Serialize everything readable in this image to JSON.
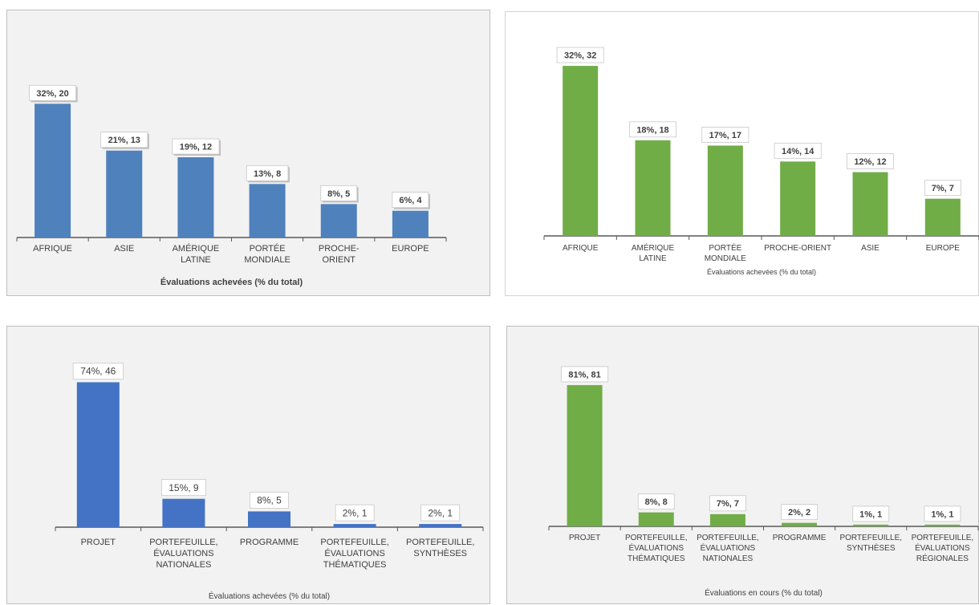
{
  "chart_data": [
    {
      "type": "bar",
      "title": "",
      "xlabel": "Évaluations achevées (% du total)",
      "ylabel": "",
      "categories": [
        [
          "AFRIQUE"
        ],
        [
          "ASIE"
        ],
        [
          "AMÉRIQUE",
          "LATINE"
        ],
        [
          "PORTÉE",
          "MONDIALE"
        ],
        [
          "PROCHE-",
          "ORIENT"
        ],
        [
          "EUROPE"
        ]
      ],
      "values": [
        20,
        13,
        12,
        8,
        5,
        4
      ],
      "data_labels": [
        "32%, 20",
        "21%, 13",
        "19%, 12",
        "13%, 8",
        "8%, 5",
        "6%, 4"
      ],
      "ylim": [
        0,
        24
      ],
      "grid": false,
      "color": "#4f81bd"
    },
    {
      "type": "bar",
      "title": "",
      "xlabel": "Évaluations achevées (% du total)",
      "ylabel": "",
      "categories": [
        [
          "AFRIQUE"
        ],
        [
          "AMÉRIQUE",
          "LATINE"
        ],
        [
          "PORTÉE",
          "MONDIALE"
        ],
        [
          "PROCHE-ORIENT"
        ],
        [
          "ASIE"
        ],
        [
          "EUROPE"
        ]
      ],
      "values": [
        32,
        18,
        17,
        14,
        12,
        7
      ],
      "data_labels": [
        "32%, 32",
        "18%, 18",
        "17%, 17",
        "14%, 14",
        "12%, 12",
        "7%, 7"
      ],
      "ylim": [
        0,
        37
      ],
      "grid": false,
      "color": "#70ad47"
    },
    {
      "type": "bar",
      "title": "",
      "xlabel": "Évaluations achevées (% du total)",
      "ylabel": "",
      "categories": [
        [
          "PROJET"
        ],
        [
          "PORTEFEUILLE,",
          "ÉVALUATIONS",
          "NATIONALES"
        ],
        [
          "PROGRAMME"
        ],
        [
          "PORTEFEUILLE,",
          "ÉVALUATIONS",
          "THÉMATIQUES"
        ],
        [
          "PORTEFEUILLE,",
          "SYNTHÈSES"
        ]
      ],
      "values": [
        46,
        9,
        5,
        1,
        1
      ],
      "data_labels": [
        "74%, 46",
        "15%, 9",
        "8%, 5",
        "2%, 1",
        "2%, 1"
      ],
      "ylim": [
        0,
        54
      ],
      "grid": false,
      "color": "#4472c4"
    },
    {
      "type": "bar",
      "title": "",
      "xlabel": "Évaluations en cours  (% du total)",
      "ylabel": "",
      "categories": [
        [
          "PROJET"
        ],
        [
          "PORTEFEUILLE,",
          "ÉVALUATIONS",
          "THÉMATIQUES"
        ],
        [
          "PORTEFEUILLE,",
          "ÉVALUATIONS",
          "NATIONALES"
        ],
        [
          "PROGRAMME"
        ],
        [
          "PORTEFEUILLE,",
          "SYNTHÈSES"
        ],
        [
          "PORTEFEUILLE,",
          "ÉVALUATIONS",
          "RÉGIONALES"
        ]
      ],
      "values": [
        81,
        8,
        7,
        2,
        1,
        1
      ],
      "data_labels": [
        "81%, 81",
        "8%, 8",
        "7%, 7",
        "2%, 2",
        "1%, 1",
        "1%, 1"
      ],
      "ylim": [
        0,
        92
      ],
      "grid": false,
      "color": "#70ad47"
    }
  ]
}
